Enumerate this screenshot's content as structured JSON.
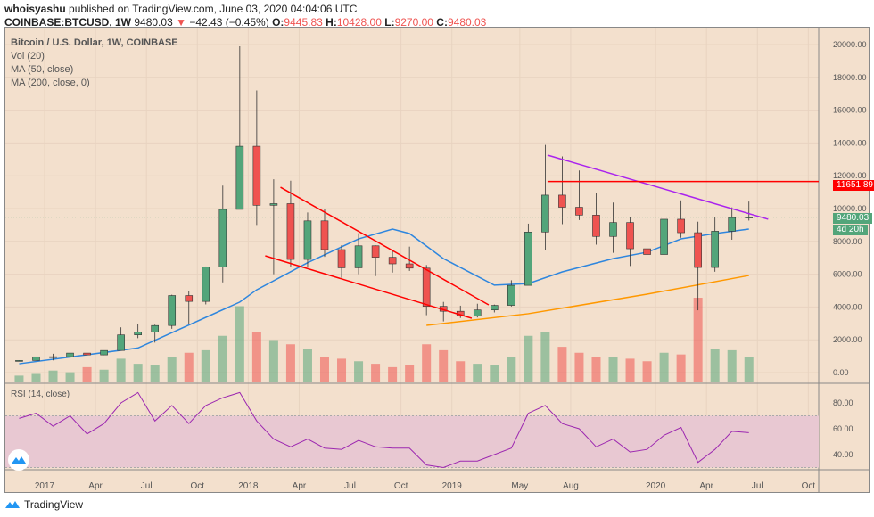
{
  "header": {
    "author": "whoisyashu",
    "published": "published on TradingView.com, June 03, 2020 04:04:06 UTC",
    "symbol": "COINBASE:BTCUSD, 1W",
    "last": "9480.03",
    "change": "−42.43 (−0.45%)",
    "o_label": "O:",
    "o": "9445.83",
    "h_label": "H:",
    "h": "10428.00",
    "l_label": "L:",
    "l": "9270.00",
    "c_label": "C:",
    "c": "9480.03"
  },
  "legend": [
    "Bitcoin / U.S. Dollar, 1W, COINBASE",
    "Vol (20)",
    "MA (50, close)",
    "MA (200, close, 0)"
  ],
  "rsi_label": "RSI (14, close)",
  "price_badge": "9480.03",
  "countdown_badge": "4d 20h",
  "level_badge": "11651.89",
  "footer_logo": "TradingView",
  "colors": {
    "up": "#53a57a",
    "down": "#ef5350",
    "ma50": "#2e86de",
    "ma200": "#ff9800",
    "trend": "#ff0000",
    "wedge": "#aa22ee",
    "rsi": "#9c27b0",
    "background": "#f3e0cd",
    "rsi_band": "#e8c8d2"
  },
  "chart_data": {
    "type": "candlestick",
    "price_ticks": [
      "20000.00",
      "18000.00",
      "16000.00",
      "14000.00",
      "12000.00",
      "10000.00",
      "8000.00",
      "6000.00",
      "4000.00",
      "2000.00",
      "0.00"
    ],
    "rsi_ticks": [
      "80.00",
      "60.00",
      "40.00"
    ],
    "time_ticks": [
      [
        "2017",
        "2017-01"
      ],
      [
        "Apr",
        "2017-04"
      ],
      [
        "Jul",
        "2017-07"
      ],
      [
        "Oct",
        "2017-10"
      ],
      [
        "2018",
        "2018-01"
      ],
      [
        "Apr",
        "2018-04"
      ],
      [
        "Jul",
        "2018-07"
      ],
      [
        "Oct",
        "2018-10"
      ],
      [
        "2019",
        "2019-01"
      ],
      [
        "May",
        "2019-05"
      ],
      [
        "Aug",
        "2019-08"
      ],
      [
        "2020",
        "2020-01"
      ],
      [
        "Apr",
        "2020-04"
      ],
      [
        "Jul",
        "2020-07"
      ],
      [
        "Oct",
        "2020-10"
      ]
    ],
    "start": "2016-11",
    "close": [
      740,
      963,
      970,
      1190,
      1080,
      1350,
      2300,
      2480,
      2870,
      4700,
      4340,
      6450,
      9950,
      13800,
      10200,
      10300,
      6900,
      9250,
      7500,
      6390,
      7730,
      7030,
      6630,
      6370,
      4040,
      3740,
      3440,
      3820,
      4100,
      5320,
      8570,
      10820,
      10080,
      9600,
      8300,
      9150,
      7550,
      7200,
      9350,
      8530,
      6410,
      8620,
      9450,
      9480.03
    ],
    "high": [
      760,
      980,
      1150,
      1210,
      1350,
      1350,
      2760,
      2990,
      2920,
      4750,
      4980,
      6470,
      11400,
      19890,
      17200,
      11790,
      11700,
      9760,
      10000,
      7770,
      8500,
      7760,
      7410,
      7680,
      6560,
      4310,
      4080,
      4200,
      4150,
      5630,
      9080,
      13880,
      13180,
      12320,
      10950,
      10370,
      9500,
      7750,
      9590,
      10500,
      9200,
      9470,
      10070,
      10428
    ],
    "low": [
      700,
      740,
      750,
      920,
      890,
      1060,
      1350,
      2100,
      1830,
      2670,
      2970,
      4160,
      5500,
      10800,
      9000,
      6000,
      6430,
      6430,
      7060,
      5780,
      6000,
      5880,
      6100,
      6200,
      3500,
      3120,
      3330,
      3360,
      3670,
      4030,
      5330,
      7450,
      9050,
      9300,
      7800,
      7300,
      6500,
      6430,
      6850,
      8220,
      3800,
      6150,
      8100,
      9270
    ],
    "volume_relative": [
      8,
      10,
      14,
      12,
      18,
      15,
      28,
      22,
      20,
      30,
      35,
      38,
      55,
      90,
      60,
      50,
      45,
      40,
      30,
      28,
      25,
      22,
      18,
      20,
      45,
      38,
      25,
      22,
      20,
      30,
      55,
      60,
      42,
      35,
      30,
      30,
      28,
      25,
      35,
      33,
      100,
      40,
      38,
      30
    ],
    "ma50": [
      [
        "2016-11",
        540
      ],
      [
        "2017-06",
        1500
      ],
      [
        "2017-12",
        4300
      ],
      [
        "2018-01",
        5050
      ],
      [
        "2018-04",
        6700
      ],
      [
        "2018-07",
        8150
      ],
      [
        "2018-09",
        8750
      ],
      [
        "2018-10",
        8480
      ],
      [
        "2018-12",
        6950
      ],
      [
        "2019-03",
        5330
      ],
      [
        "2019-05",
        5430
      ],
      [
        "2019-07",
        6140
      ],
      [
        "2019-10",
        6950
      ],
      [
        "2019-12",
        7340
      ],
      [
        "2020-02",
        8150
      ],
      [
        "2020-04",
        8480
      ],
      [
        "2020-06",
        8750
      ]
    ],
    "ma200": [
      [
        "2018-11",
        2880
      ],
      [
        "2019-05",
        3590
      ],
      [
        "2019-12",
        4780
      ],
      [
        "2020-06",
        5920
      ]
    ],
    "rsi": [
      68,
      72,
      62,
      70,
      56,
      64,
      80,
      88,
      66,
      78,
      64,
      78,
      84,
      88,
      66,
      52,
      46,
      52,
      45,
      44,
      51,
      46,
      45,
      45,
      32,
      30,
      35,
      35,
      40,
      45,
      72,
      78,
      64,
      60,
      46,
      52,
      42,
      44,
      55,
      61,
      34,
      44,
      58,
      57
    ],
    "rsi_band": [
      30,
      70
    ],
    "trendlines": [
      {
        "color": "trend",
        "from": [
          "2018-02-28",
          11300
        ],
        "to": [
          "2019-03-06",
          4130
        ]
      },
      {
        "color": "trend",
        "from": [
          "2018-02-01",
          7120
        ],
        "to": [
          "2019-02-06",
          3315
        ]
      },
      {
        "color": "wedge",
        "from": [
          "2019-06-20",
          13260
        ],
        "to": [
          "2020-07-20",
          9350
        ]
      }
    ],
    "horizontal_level": {
      "price": 11651.89,
      "from": "2019-06-20"
    }
  }
}
